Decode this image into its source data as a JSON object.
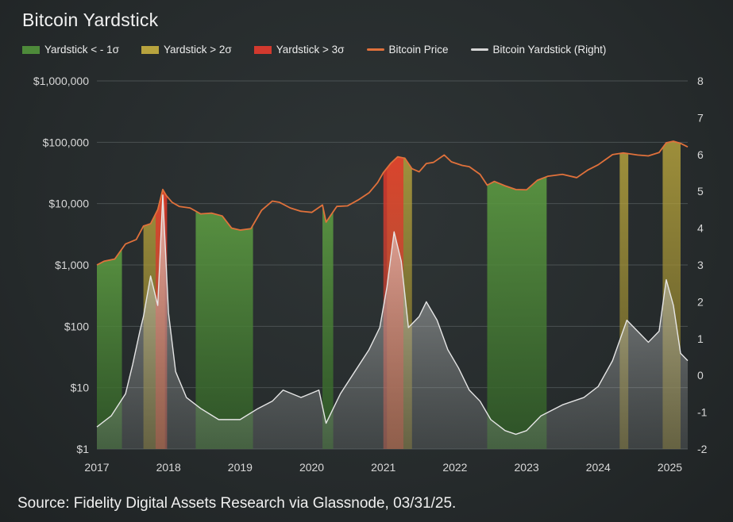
{
  "title": "Bitcoin Yardstick",
  "source": "Source: Fidelity Digital Assets Research via Glassnode, 03/31/25.",
  "legend": [
    {
      "label": "Yardstick < - 1σ",
      "color": "#4e8a3a",
      "kind": "box"
    },
    {
      "label": "Yardstick > 2σ",
      "color": "#b7a33e",
      "kind": "box"
    },
    {
      "label": "Yardstick > 3σ",
      "color": "#d2392e",
      "kind": "box"
    },
    {
      "label": "Bitcoin Price",
      "color": "#e0713b",
      "kind": "line"
    },
    {
      "label": "Bitcoin Yardstick (Right)",
      "color": "#d6d6d6",
      "kind": "line"
    }
  ],
  "chart_data": {
    "type": "line",
    "title": "Bitcoin Yardstick",
    "x_ticks": [
      "2017",
      "2018",
      "2019",
      "2020",
      "2021",
      "2022",
      "2023",
      "2024",
      "2025"
    ],
    "y_left_ticks": [
      "$1,000,000",
      "$100,000",
      "$10,000",
      "$1,000",
      "$100",
      "$10",
      "$1"
    ],
    "y_left_scale": "log",
    "y_left_range": [
      1,
      1000000
    ],
    "y_right_ticks": [
      "8",
      "7",
      "6",
      "5",
      "4",
      "3",
      "2",
      "1",
      "0",
      "-1",
      "-2"
    ],
    "y_right_range": [
      -2,
      8
    ],
    "x_range": [
      2017.0,
      2025.25
    ],
    "grid": "horizontal",
    "legend_position": "top-left",
    "series": [
      {
        "name": "Bitcoin Price",
        "axis": "left",
        "x": [
          2017.0,
          2017.1,
          2017.25,
          2017.4,
          2017.55,
          2017.65,
          2017.75,
          2017.85,
          2017.92,
          2017.97,
          2018.05,
          2018.15,
          2018.3,
          2018.45,
          2018.6,
          2018.75,
          2018.88,
          2019.0,
          2019.15,
          2019.3,
          2019.45,
          2019.55,
          2019.7,
          2019.85,
          2020.0,
          2020.15,
          2020.2,
          2020.35,
          2020.5,
          2020.65,
          2020.8,
          2020.92,
          2021.0,
          2021.1,
          2021.2,
          2021.3,
          2021.4,
          2021.5,
          2021.6,
          2021.7,
          2021.85,
          2021.95,
          2022.1,
          2022.2,
          2022.35,
          2022.45,
          2022.55,
          2022.7,
          2022.85,
          2023.0,
          2023.15,
          2023.3,
          2023.5,
          2023.7,
          2023.85,
          2024.0,
          2024.2,
          2024.35,
          2024.55,
          2024.7,
          2024.85,
          2024.95,
          2025.05,
          2025.15,
          2025.25
        ],
        "values": [
          1000,
          1150,
          1250,
          2200,
          2600,
          4300,
          4700,
          8000,
          17000,
          13500,
          10500,
          9000,
          8500,
          6800,
          7000,
          6300,
          4000,
          3700,
          3900,
          7800,
          11000,
          10500,
          8500,
          7500,
          7200,
          9500,
          5000,
          9000,
          9200,
          11500,
          15000,
          22000,
          32000,
          45000,
          58000,
          55000,
          37000,
          33000,
          45000,
          47000,
          62000,
          48000,
          42000,
          40000,
          30000,
          20000,
          23000,
          19500,
          17000,
          16800,
          24000,
          28000,
          30000,
          26500,
          35000,
          43000,
          63000,
          67000,
          62000,
          60000,
          68000,
          98000,
          104000,
          96000,
          84000
        ]
      },
      {
        "name": "Bitcoin Yardstick (Right)",
        "axis": "right",
        "x": [
          2017.0,
          2017.2,
          2017.4,
          2017.5,
          2017.6,
          2017.65,
          2017.75,
          2017.85,
          2017.92,
          2018.0,
          2018.1,
          2018.25,
          2018.45,
          2018.7,
          2019.0,
          2019.25,
          2019.45,
          2019.6,
          2019.85,
          2020.1,
          2020.2,
          2020.4,
          2020.6,
          2020.8,
          2020.95,
          2021.05,
          2021.15,
          2021.25,
          2021.35,
          2021.5,
          2021.6,
          2021.75,
          2021.9,
          2022.05,
          2022.2,
          2022.35,
          2022.5,
          2022.7,
          2022.85,
          2023.0,
          2023.2,
          2023.5,
          2023.8,
          2024.0,
          2024.2,
          2024.4,
          2024.55,
          2024.7,
          2024.85,
          2024.95,
          2025.05,
          2025.15,
          2025.25
        ],
        "values": [
          -1.4,
          -1.1,
          -0.5,
          0.3,
          1.2,
          1.6,
          2.7,
          1.9,
          4.9,
          1.7,
          0.1,
          -0.6,
          -0.9,
          -1.2,
          -1.2,
          -0.9,
          -0.7,
          -0.4,
          -0.6,
          -0.4,
          -1.3,
          -0.5,
          0.1,
          0.7,
          1.3,
          2.4,
          3.9,
          3.1,
          1.3,
          1.6,
          2.0,
          1.5,
          0.7,
          0.2,
          -0.4,
          -0.7,
          -1.2,
          -1.5,
          -1.6,
          -1.5,
          -1.1,
          -0.8,
          -0.6,
          -0.3,
          0.4,
          1.5,
          1.2,
          0.9,
          1.2,
          2.6,
          1.9,
          0.6,
          0.4
        ]
      }
    ],
    "regions": [
      {
        "name": "Yardstick < - 1σ",
        "ranges": [
          [
            2017.0,
            2017.35
          ],
          [
            2018.38,
            2019.18
          ],
          [
            2020.15,
            2020.3
          ],
          [
            2022.45,
            2023.28
          ]
        ]
      },
      {
        "name": "Yardstick > 2σ",
        "ranges": [
          [
            2017.65,
            2017.95
          ],
          [
            2021.05,
            2021.4
          ],
          [
            2024.3,
            2024.42
          ],
          [
            2024.9,
            2025.15
          ]
        ]
      },
      {
        "name": "Yardstick > 3σ",
        "ranges": [
          [
            2017.82,
            2017.98
          ],
          [
            2021.0,
            2021.28
          ]
        ]
      }
    ]
  }
}
